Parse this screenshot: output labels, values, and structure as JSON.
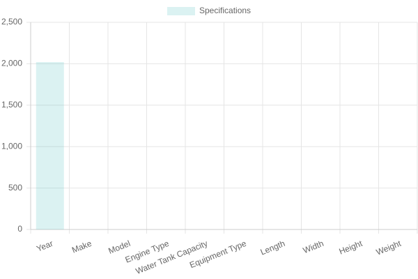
{
  "chart_data": {
    "type": "bar",
    "categories": [
      "Year",
      "Make",
      "Model",
      "Engine Type",
      "Water Tank Capacity",
      "Equipment Type",
      "Length",
      "Width",
      "Height",
      "Weight"
    ],
    "series": [
      {
        "name": "Specifications",
        "color": "rgba(75,192,192,0.2)",
        "values": [
          2020,
          null,
          null,
          null,
          null,
          null,
          null,
          null,
          null,
          null
        ]
      }
    ],
    "ylim": [
      0,
      2500
    ],
    "yticks": [
      0,
      500,
      {
        "value": 1000,
        "label": "1,000"
      },
      {
        "value": 1500,
        "label": "1,500"
      },
      {
        "value": 2000,
        "label": "2,000"
      },
      {
        "value": 2500,
        "label": "2,500"
      }
    ],
    "grid": true,
    "legend": "top"
  }
}
